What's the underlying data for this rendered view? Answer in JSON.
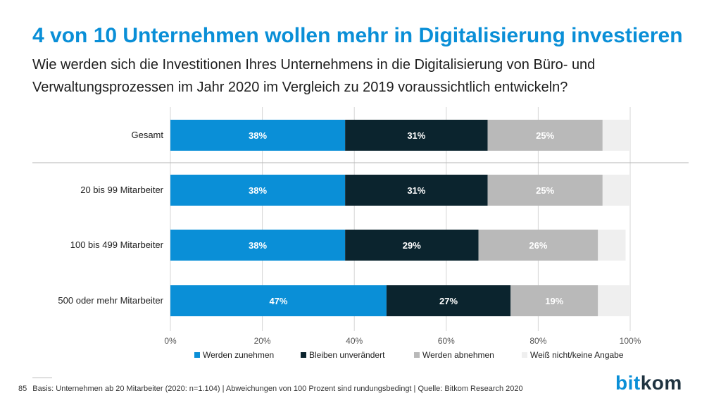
{
  "title": "4 von 10 Unternehmen wollen mehr in Digitalisierung investieren",
  "subtitle": "Wie werden sich die Investitionen Ihres Unternehmens in die Digitalisierung von Büro- und Verwaltungsprozessen im Jahr 2020 im Vergleich zu 2019 voraussichtlich entwickeln?",
  "footer": {
    "page_number": "85",
    "source": "Basis: Unternehmen ab 20 Mitarbeiter (2020: n=1.104) | Abweichungen von 100 Prozent sind rundungsbedingt | Quelle: Bitkom Research 2020"
  },
  "logo": {
    "part1": "bit",
    "part2": "kom"
  },
  "chart_data": {
    "type": "bar",
    "orientation": "horizontal",
    "stacked": true,
    "categories": [
      "Gesamt",
      "20 bis 99 Mitarbeiter",
      "100 bis 499 Mitarbeiter",
      "500 oder mehr Mitarbeiter"
    ],
    "series": [
      {
        "name": "Werden zunehmen",
        "color": "#0a8fd7",
        "label_color": "#ffffff",
        "values": [
          38,
          38,
          38,
          47
        ],
        "labels": [
          "38%",
          "38%",
          "38%",
          "47%"
        ]
      },
      {
        "name": "Bleiben unverändert",
        "color": "#0b242e",
        "label_color": "#ffffff",
        "values": [
          31,
          31,
          29,
          27
        ],
        "labels": [
          "31%",
          "31%",
          "29%",
          "27%"
        ]
      },
      {
        "name": "Werden abnehmen",
        "color": "#b9b9b9",
        "label_color": "#ffffff",
        "values": [
          25,
          25,
          26,
          19
        ],
        "labels": [
          "25%",
          "25%",
          "26%",
          "19%"
        ]
      },
      {
        "name": "Weiß nicht/keine Angabe",
        "color": "#efefef",
        "label_color": "#ffffff",
        "values": [
          6,
          6,
          6,
          7
        ],
        "labels": [
          "",
          "",
          "",
          ""
        ]
      }
    ],
    "xlim": [
      0,
      100
    ],
    "xticks": [
      "0%",
      "20%",
      "40%",
      "60%",
      "80%",
      "100%"
    ],
    "grid": true,
    "legend": "bottom"
  }
}
